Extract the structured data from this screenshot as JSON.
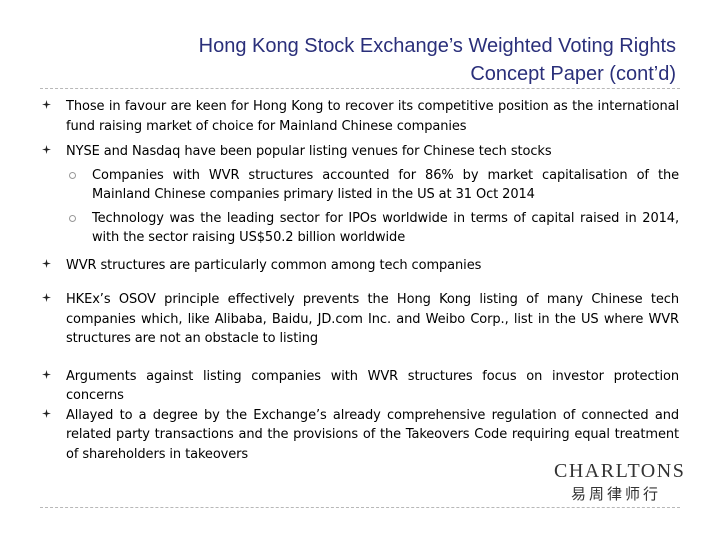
{
  "slide": {
    "title_line1": "Hong Kong Stock Exchange’s Weighted Voting Rights",
    "title_line2": "Concept Paper (cont’d)"
  },
  "bullets": [
    {
      "text": "Those in favour are keen for Hong Kong to recover its competitive position as the international fund raising market of choice for Mainland Chinese companies"
    },
    {
      "text": "NYSE and Nasdaq have been popular listing venues for Chinese tech stocks"
    },
    {
      "text": "WVR structures are particularly common among tech companies"
    },
    {
      "text": "HKEx’s OSOV principle effectively prevents the Hong Kong listing of many Chinese tech companies which, like Alibaba, Baidu, JD.com Inc. and Weibo Corp., list in the US where WVR structures are not an obstacle to listing"
    },
    {
      "text": "Arguments against listing companies with WVR structures focus on investor protection concerns"
    },
    {
      "text": "Allayed to a degree by the Exchange’s already comprehensive regulation of connected and related party transactions and the provisions of the Takeovers Code requiring equal treatment of shareholders in takeovers"
    }
  ],
  "sub_bullets": [
    {
      "text": "Companies with WVR structures accounted for 86% by market capitalisation of the Mainland Chinese companies primary listed in the US at 31 Oct 2014"
    },
    {
      "text": "Technology was the leading sector for IPOs worldwide in terms of capital raised in 2014, with the sector raising US$50.2 billion worldwide"
    }
  ],
  "logo": {
    "name_en": "CHARLTONS",
    "name_cn": "易周律师行"
  },
  "colors": {
    "title": "#2a2f7a",
    "rule": "#b8b8b8"
  },
  "icons": {
    "bullet": "fleuron-icon",
    "sub_bullet": "hollow-circle-icon"
  }
}
